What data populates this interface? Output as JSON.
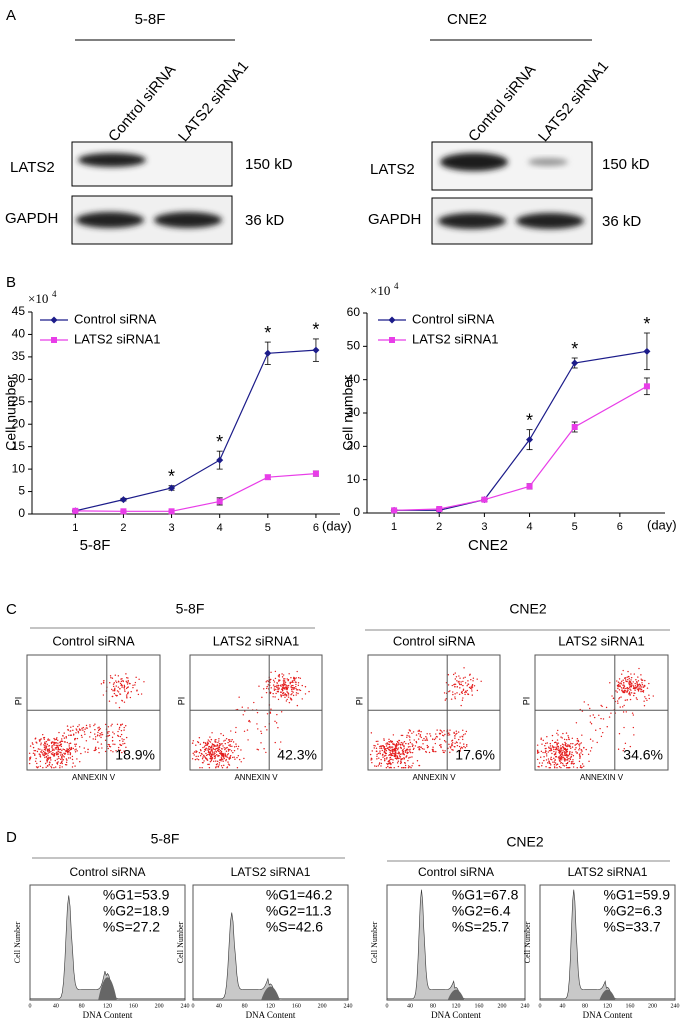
{
  "panel_a": {
    "label": "A",
    "blots": [
      {
        "cell_line": "5-8F",
        "lanes": [
          "Control siRNA",
          "LATS2 siRNA1"
        ],
        "bands": [
          {
            "protein": "LATS2",
            "size": "150 kD"
          },
          {
            "protein": "GAPDH",
            "size": "36 kD"
          }
        ]
      },
      {
        "cell_line": "CNE2",
        "lanes": [
          "Control siRNA",
          "LATS2 siRNA1"
        ],
        "bands": [
          {
            "protein": "LATS2",
            "size": "150 kD"
          },
          {
            "protein": "GAPDH",
            "size": "36 kD"
          }
        ]
      }
    ]
  },
  "panel_b": {
    "label": "B"
  },
  "chart_data": [
    {
      "type": "line",
      "title": "5-8F",
      "y_label": "Cell number",
      "x_label": "(day)",
      "y_multiplier": {
        "base": "×10",
        "exponent": "4"
      },
      "x": [
        1,
        2,
        3,
        4,
        5,
        6
      ],
      "xlim": [
        0.1,
        6.5
      ],
      "xticks": [
        1,
        2,
        3,
        4,
        5,
        6
      ],
      "ylim": [
        0,
        45
      ],
      "yticks": [
        0,
        5,
        10,
        15,
        20,
        25,
        30,
        35,
        40,
        45
      ],
      "series": [
        {
          "name": "Control siRNA",
          "color": "#1c1c8a",
          "marker": "diamond",
          "values": [
            0.7,
            3.2,
            5.8,
            12,
            35.8,
            36.5
          ],
          "errors": [
            0.2,
            0.3,
            0.5,
            2,
            2.5,
            2.5
          ],
          "significance": [
            null,
            null,
            "*",
            "*",
            "*",
            "*"
          ]
        },
        {
          "name": "LATS2 siRNA1",
          "color": "#e83de8",
          "marker": "square",
          "values": [
            0.7,
            0.6,
            0.6,
            2.8,
            8.2,
            9
          ],
          "errors": [
            0.2,
            0.2,
            0.2,
            0.8,
            0.5,
            0.6
          ]
        }
      ]
    },
    {
      "type": "line",
      "title": "CNE2",
      "y_label": "Cell number",
      "x_label": "(day)",
      "y_multiplier": {
        "base": "×10",
        "exponent": "4"
      },
      "x": [
        1,
        2,
        3,
        4,
        5,
        6.6
      ],
      "xlim": [
        0.4,
        7
      ],
      "xticks": [
        1,
        2,
        3,
        4,
        5,
        6
      ],
      "ylim": [
        0,
        60
      ],
      "yticks": [
        0,
        10,
        20,
        30,
        40,
        50,
        60
      ],
      "series": [
        {
          "name": "Control siRNA",
          "color": "#1c1c8a",
          "marker": "diamond",
          "values": [
            0.8,
            0.8,
            4,
            22,
            45,
            48.5
          ],
          "errors": [
            0.3,
            0.3,
            0.5,
            3,
            1.5,
            5.5
          ],
          "significance": [
            null,
            null,
            null,
            "*",
            "*",
            "*"
          ]
        },
        {
          "name": "LATS2 siRNA1",
          "color": "#e83de8",
          "marker": "square",
          "values": [
            0.8,
            1.2,
            4,
            8,
            25.8,
            38
          ],
          "errors": [
            0.3,
            0.3,
            0.5,
            0.8,
            1.5,
            2.5
          ]
        }
      ]
    }
  ],
  "panel_c": {
    "label": "C",
    "x_label": "ANNEXIN V",
    "y_label": "PI",
    "groups": [
      {
        "cell_line": "5-8F",
        "plots": [
          {
            "title": "Control siRNA",
            "percent": "18.9%"
          },
          {
            "title": "LATS2 siRNA1",
            "percent": "42.3%"
          }
        ]
      },
      {
        "cell_line": "CNE2",
        "plots": [
          {
            "title": "Control siRNA",
            "percent": "17.6%"
          },
          {
            "title": "LATS2 siRNA1",
            "percent": "34.6%"
          }
        ]
      }
    ]
  },
  "panel_d": {
    "label": "D",
    "x_label": "DNA Content",
    "y_label": "Cell Number",
    "x_ticks": [
      0,
      40,
      80,
      120,
      160,
      200,
      240
    ],
    "groups": [
      {
        "cell_line": "5-8F",
        "plots": [
          {
            "title": "Control siRNA",
            "stats": [
              "%G1=53.9",
              "%G2=18.9",
              "%S=27.2"
            ]
          },
          {
            "title": "LATS2 siRNA1",
            "stats": [
              "%G1=46.2",
              "%G2=11.3",
              "%S=42.6"
            ]
          }
        ]
      },
      {
        "cell_line": "CNE2",
        "plots": [
          {
            "title": "Control siRNA",
            "stats": [
              "%G1=67.8",
              "%G2=6.4",
              "%S=25.7"
            ]
          },
          {
            "title": "LATS2 siRNA1",
            "stats": [
              "%G1=59.9",
              "%G2=6.3",
              "%S=33.7"
            ]
          }
        ]
      }
    ]
  }
}
